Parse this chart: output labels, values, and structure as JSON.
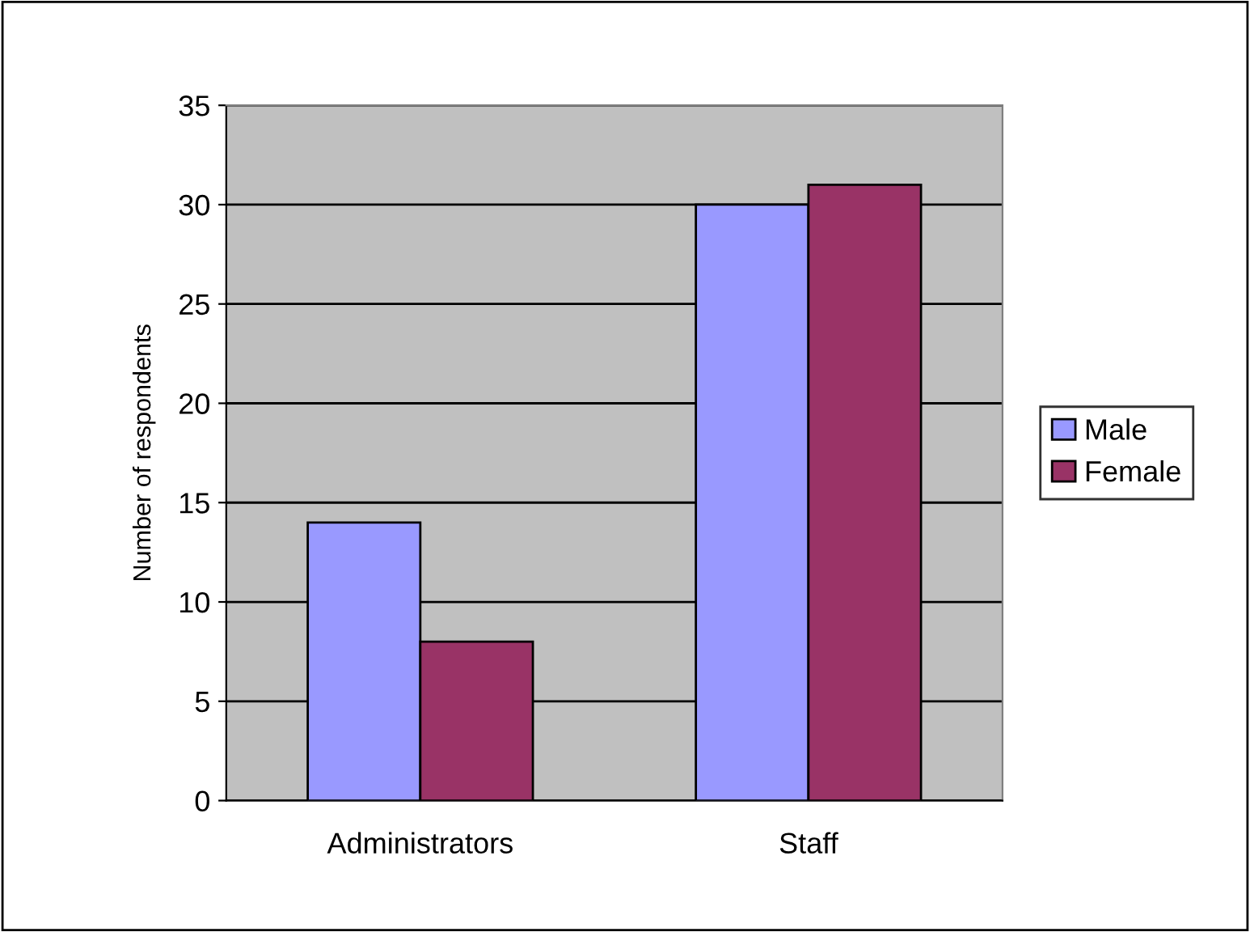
{
  "chart_data": {
    "type": "bar",
    "ylabel": "Number of respondents",
    "categories": [
      "Administrators",
      "Staff"
    ],
    "series": [
      {
        "name": "Male",
        "color": "#9999ff",
        "values": [
          14,
          30
        ]
      },
      {
        "name": "Female",
        "color": "#993366",
        "values": [
          8,
          31
        ]
      }
    ],
    "ylim": [
      0,
      35
    ],
    "yticks": [
      0,
      5,
      10,
      15,
      20,
      25,
      30,
      35
    ],
    "grid": "y",
    "legend": "right"
  }
}
